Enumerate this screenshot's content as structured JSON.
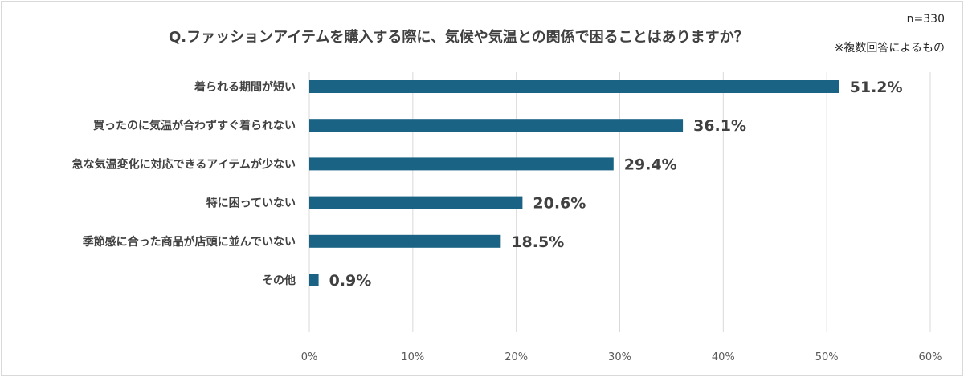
{
  "chart_data": {
    "type": "bar",
    "orientation": "horizontal",
    "title": "Q.ファッションアイテムを購入する際に、気候や気温との関係で困ることはありますか？",
    "sample_size": "n=330",
    "note": "※複数回答によるもの",
    "categories": [
      "着られる期間が短い",
      "買ったのに気温が合わずすぐ着られない",
      "急な気温変化に対応できるアイテムが少ない",
      "特に困っていない",
      "季節感に合った商品が店頭に並んでいない",
      "その他"
    ],
    "values": [
      51.2,
      36.1,
      29.4,
      20.6,
      18.5,
      0.9
    ],
    "value_labels": [
      "51.2%",
      "36.1%",
      "29.4%",
      "20.6%",
      "18.5%",
      "0.9%"
    ],
    "xlim": [
      0,
      60
    ],
    "ticks": [
      0,
      10,
      20,
      30,
      40,
      50,
      60
    ],
    "tick_labels": [
      "0%",
      "10%",
      "20%",
      "30%",
      "40%",
      "50%",
      "60%"
    ],
    "grid": "vertical",
    "legend": "none",
    "bar_color": "#1a6384",
    "grid_color": "#d9d9d9"
  }
}
